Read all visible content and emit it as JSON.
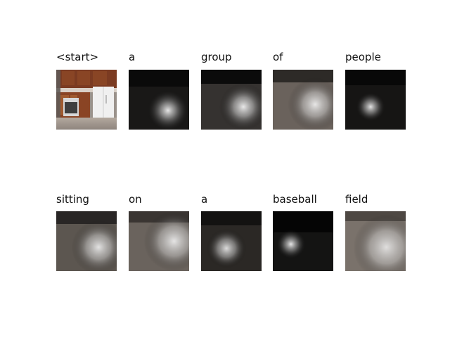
{
  "caption_tokens": [
    "<start>",
    "a",
    "group",
    "of",
    "people",
    "sitting",
    "on",
    "a",
    "baseball",
    "field"
  ],
  "panels": [
    {
      "token": "<start>",
      "kind": "original_image",
      "subject": "kitchen with wooden cabinets, white refrigerator and stove"
    },
    {
      "token": "a",
      "kind": "attention_map"
    },
    {
      "token": "group",
      "kind": "attention_map"
    },
    {
      "token": "of",
      "kind": "attention_map"
    },
    {
      "token": "people",
      "kind": "attention_map"
    },
    {
      "token": "sitting",
      "kind": "attention_map"
    },
    {
      "token": "on",
      "kind": "attention_map"
    },
    {
      "token": "a",
      "kind": "attention_map"
    },
    {
      "token": "baseball",
      "kind": "attention_map"
    },
    {
      "token": "field",
      "kind": "attention_map"
    }
  ],
  "colors": {
    "background": "#ffffff",
    "text": "#111111",
    "dark_overlay": "#0b0b0b",
    "highlight": "#f2f2f2"
  }
}
